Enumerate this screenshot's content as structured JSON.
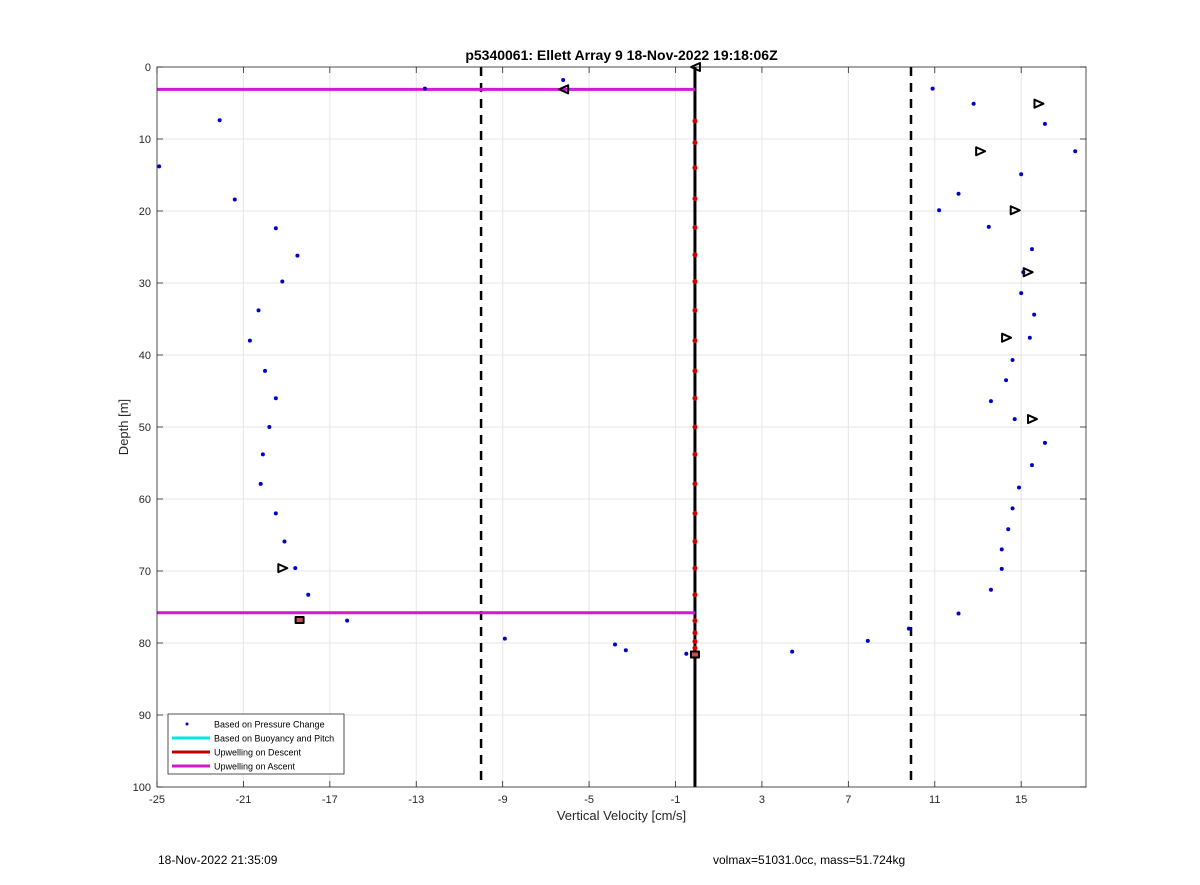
{
  "chart_data": {
    "type": "scatter",
    "title": "p5340061: Ellett Array 9 18-Nov-2022 19:18:06Z",
    "xlabel": "Vertical Velocity [cm/s]",
    "ylabel": "Depth [m]",
    "xlim": [
      -25,
      18
    ],
    "ylim": [
      0,
      100
    ],
    "y_reversed": true,
    "grid": true,
    "legend_position": "bottom-left",
    "x_ticks": [
      "-25",
      "-21",
      "-17",
      "-13",
      "-9",
      "-5",
      "-1",
      "3",
      "7",
      "11",
      "15"
    ],
    "y_ticks": [
      "0",
      "10",
      "20",
      "30",
      "40",
      "50",
      "60",
      "70",
      "80",
      "90",
      "100"
    ],
    "legend": [
      {
        "label": "Based on Pressure Change",
        "color": "#0000cc",
        "style": "dot"
      },
      {
        "label": "Based on Buoyancy and Pitch",
        "color": "#00e5e5",
        "style": "line"
      },
      {
        "label": "Upwelling on Descent",
        "color": "#c00000",
        "style": "line"
      },
      {
        "label": "Upwelling on Ascent",
        "color": "#d11ad1",
        "style": "line"
      }
    ],
    "pressure_change_points": [
      {
        "x": -6.2,
        "y": 1.8
      },
      {
        "x": -12.6,
        "y": 3.0
      },
      {
        "x": -22.1,
        "y": 7.4
      },
      {
        "x": -24.9,
        "y": 13.8
      },
      {
        "x": -21.4,
        "y": 18.4
      },
      {
        "x": -19.5,
        "y": 22.4
      },
      {
        "x": -18.5,
        "y": 26.2
      },
      {
        "x": -19.2,
        "y": 29.8
      },
      {
        "x": -20.3,
        "y": 33.8
      },
      {
        "x": -20.7,
        "y": 38.0
      },
      {
        "x": -20.0,
        "y": 42.2
      },
      {
        "x": -19.5,
        "y": 46.0
      },
      {
        "x": -19.8,
        "y": 50.0
      },
      {
        "x": -20.1,
        "y": 53.8
      },
      {
        "x": -20.2,
        "y": 57.9
      },
      {
        "x": -19.5,
        "y": 62.0
      },
      {
        "x": -19.1,
        "y": 65.9
      },
      {
        "x": -18.6,
        "y": 69.6
      },
      {
        "x": -18.0,
        "y": 73.3
      },
      {
        "x": -16.2,
        "y": 76.9
      },
      {
        "x": -8.9,
        "y": 79.4
      },
      {
        "x": -3.8,
        "y": 80.2
      },
      {
        "x": -3.3,
        "y": 81.0
      },
      {
        "x": -0.5,
        "y": 81.5
      },
      {
        "x": 4.4,
        "y": 81.2
      },
      {
        "x": 7.9,
        "y": 79.7
      },
      {
        "x": 9.8,
        "y": 78.0
      },
      {
        "x": 12.1,
        "y": 75.9
      },
      {
        "x": 13.6,
        "y": 72.6
      },
      {
        "x": 14.1,
        "y": 69.7
      },
      {
        "x": 14.1,
        "y": 67.0
      },
      {
        "x": 14.4,
        "y": 64.2
      },
      {
        "x": 14.6,
        "y": 61.3
      },
      {
        "x": 14.9,
        "y": 58.4
      },
      {
        "x": 15.5,
        "y": 55.3
      },
      {
        "x": 16.1,
        "y": 52.2
      },
      {
        "x": 14.7,
        "y": 48.9
      },
      {
        "x": 13.6,
        "y": 46.4
      },
      {
        "x": 14.3,
        "y": 43.5
      },
      {
        "x": 14.6,
        "y": 40.7
      },
      {
        "x": 15.4,
        "y": 37.6
      },
      {
        "x": 15.6,
        "y": 34.4
      },
      {
        "x": 15.0,
        "y": 31.4
      },
      {
        "x": 15.1,
        "y": 28.5
      },
      {
        "x": 15.5,
        "y": 25.3
      },
      {
        "x": 13.5,
        "y": 22.2
      },
      {
        "x": 11.2,
        "y": 19.9
      },
      {
        "x": 12.1,
        "y": 17.6
      },
      {
        "x": 15.0,
        "y": 14.9
      },
      {
        "x": 17.5,
        "y": 11.7
      },
      {
        "x": 16.1,
        "y": 7.9
      },
      {
        "x": 12.8,
        "y": 5.1
      },
      {
        "x": 10.9,
        "y": 3.0
      }
    ],
    "descent_markers": [
      {
        "x": -0.1,
        "y": 0.0,
        "dir": "left"
      },
      {
        "x": -6.2,
        "y": 3.1,
        "dir": "left"
      },
      {
        "x": -19.2,
        "y": 69.6,
        "dir": "right"
      },
      {
        "x": -18.4,
        "y": 76.8,
        "dir": "round"
      },
      {
        "x": -0.1,
        "y": 81.6,
        "dir": "round"
      },
      {
        "x": 15.8,
        "y": 5.1,
        "dir": "right"
      },
      {
        "x": 13.1,
        "y": 11.7,
        "dir": "right"
      },
      {
        "x": 14.7,
        "y": 19.9,
        "dir": "right"
      },
      {
        "x": 15.3,
        "y": 28.5,
        "dir": "right"
      },
      {
        "x": 14.3,
        "y": 37.6,
        "dir": "right"
      },
      {
        "x": 15.5,
        "y": 48.9,
        "dir": "right"
      }
    ],
    "descent_upwelling_points": [
      {
        "x": -0.1,
        "y": 7.5
      },
      {
        "x": -0.1,
        "y": 10.5
      },
      {
        "x": -0.1,
        "y": 14.0
      },
      {
        "x": -0.1,
        "y": 18.3
      },
      {
        "x": -0.1,
        "y": 22.3
      },
      {
        "x": -0.1,
        "y": 26.1
      },
      {
        "x": -0.1,
        "y": 29.8
      },
      {
        "x": -0.1,
        "y": 33.8
      },
      {
        "x": -0.1,
        "y": 38.0
      },
      {
        "x": -0.1,
        "y": 42.2
      },
      {
        "x": -0.1,
        "y": 46.0
      },
      {
        "x": -0.1,
        "y": 50.0
      },
      {
        "x": -0.1,
        "y": 53.8
      },
      {
        "x": -0.1,
        "y": 57.9
      },
      {
        "x": -0.1,
        "y": 62.0
      },
      {
        "x": -0.1,
        "y": 65.9
      },
      {
        "x": -0.1,
        "y": 69.6
      },
      {
        "x": -0.1,
        "y": 73.3
      },
      {
        "x": -0.1,
        "y": 76.9
      },
      {
        "x": -0.1,
        "y": 78.6
      },
      {
        "x": -0.1,
        "y": 79.8
      },
      {
        "x": -0.1,
        "y": 80.7
      },
      {
        "x": -18.4,
        "y": 76.8
      }
    ],
    "ascent_upwelling_lines": [
      {
        "x": [
          -25,
          -0.1
        ],
        "y": [
          3.1,
          3.1
        ]
      },
      {
        "x": [
          -25,
          -0.1
        ],
        "y": [
          75.8,
          75.8
        ]
      }
    ],
    "zero_line_x": -0.1,
    "threshold_lines_x": [
      -10.0,
      9.9
    ]
  },
  "footer": {
    "timestamp": "18-Nov-2022 21:35:09",
    "stats": "volmax=51031.0cc, mass=51.724kg"
  }
}
